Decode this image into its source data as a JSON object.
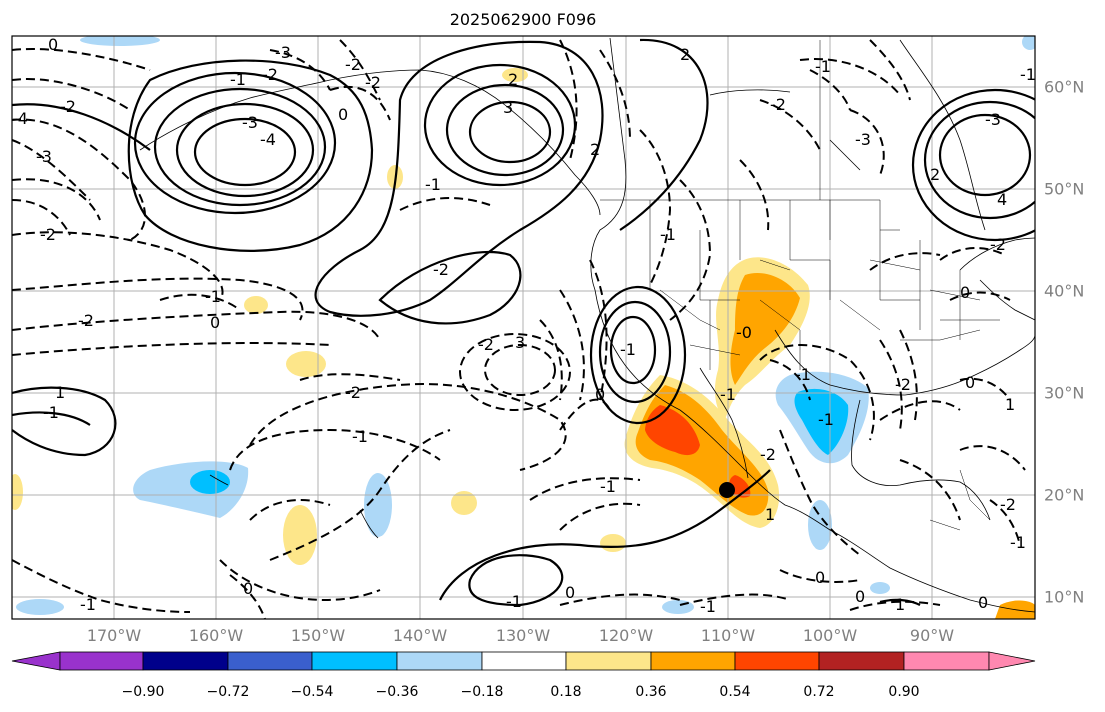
{
  "title": "2025062900 F096",
  "map": {
    "lon_labels": [
      "170°W",
      "160°W",
      "150°W",
      "140°W",
      "130°W",
      "120°W",
      "110°W",
      "100°W",
      "90°W"
    ],
    "lat_labels": [
      "60°N",
      "50°N",
      "40°N",
      "30°N",
      "20°N",
      "10°N"
    ],
    "contour_labels": [
      "0",
      "-3",
      "-2",
      "-2",
      "-4",
      "-3",
      "-1",
      "-2",
      "-3",
      "-4",
      "-2",
      "2",
      "3",
      "-1",
      "0",
      "-2",
      "2",
      "-1",
      "2",
      "-2",
      "-3",
      "-1",
      "-1",
      "-2",
      "-2",
      "0",
      "-1",
      "1",
      "3",
      "-3",
      "4",
      "-2",
      "0",
      "-2",
      "-0",
      "-1",
      "0",
      "-2",
      "-1",
      "-1",
      "0",
      "-1",
      "0",
      "-2",
      "1",
      "1",
      "0",
      "-1",
      "0",
      "-1",
      "-1",
      "-1",
      "-1",
      "0",
      "0",
      "1",
      "2",
      "-1",
      "-2",
      "-2",
      "-1"
    ],
    "marker": "storm-center-dot",
    "colors": {
      "solid_contour": "#000000",
      "grid": "#b0b0b0",
      "coast": "#000000"
    }
  },
  "colorbar": {
    "ticks": [
      "−0.90",
      "−0.72",
      "−0.54",
      "−0.36",
      "−0.18",
      "0.18",
      "0.36",
      "0.54",
      "0.72",
      "0.90"
    ],
    "colors": [
      "#9932cc",
      "#00008b",
      "#3a5fcd",
      "#00bfff",
      "#add8f7",
      "#ffffff",
      "#fde68a",
      "#ffa500",
      "#ff4500",
      "#b22222",
      "#ff88b0"
    ]
  }
}
